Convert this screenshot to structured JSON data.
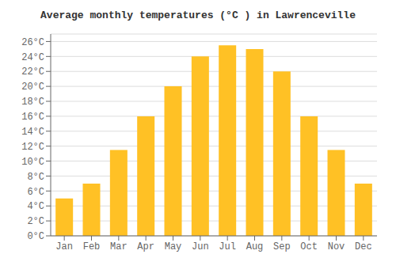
{
  "chart_data": {
    "type": "bar",
    "title": "Average monthly temperatures (°C ) in Lawrenceville",
    "categories": [
      "Jan",
      "Feb",
      "Mar",
      "Apr",
      "May",
      "Jun",
      "Jul",
      "Aug",
      "Sep",
      "Oct",
      "Nov",
      "Dec"
    ],
    "values": [
      5.0,
      7.0,
      11.5,
      16.0,
      20.0,
      24.0,
      25.5,
      25.0,
      22.0,
      16.0,
      11.5,
      7.0
    ],
    "color": "#FFC125",
    "ylim": [
      0,
      27
    ],
    "yticks": [
      {
        "value": 0,
        "label": "0°C"
      },
      {
        "value": 2,
        "label": "2°C"
      },
      {
        "value": 4,
        "label": "4°C"
      },
      {
        "value": 6,
        "label": "6°C"
      },
      {
        "value": 8,
        "label": "8°C"
      },
      {
        "value": 10,
        "label": "10°C"
      },
      {
        "value": 12,
        "label": "12°C"
      },
      {
        "value": 14,
        "label": "14°C"
      },
      {
        "value": 16,
        "label": "16°C"
      },
      {
        "value": 18,
        "label": "18°C"
      },
      {
        "value": 20,
        "label": "20°C"
      },
      {
        "value": 22,
        "label": "22°C"
      },
      {
        "value": 24,
        "label": "24°C"
      },
      {
        "value": 26,
        "label": "26°C"
      }
    ],
    "grid": true
  }
}
